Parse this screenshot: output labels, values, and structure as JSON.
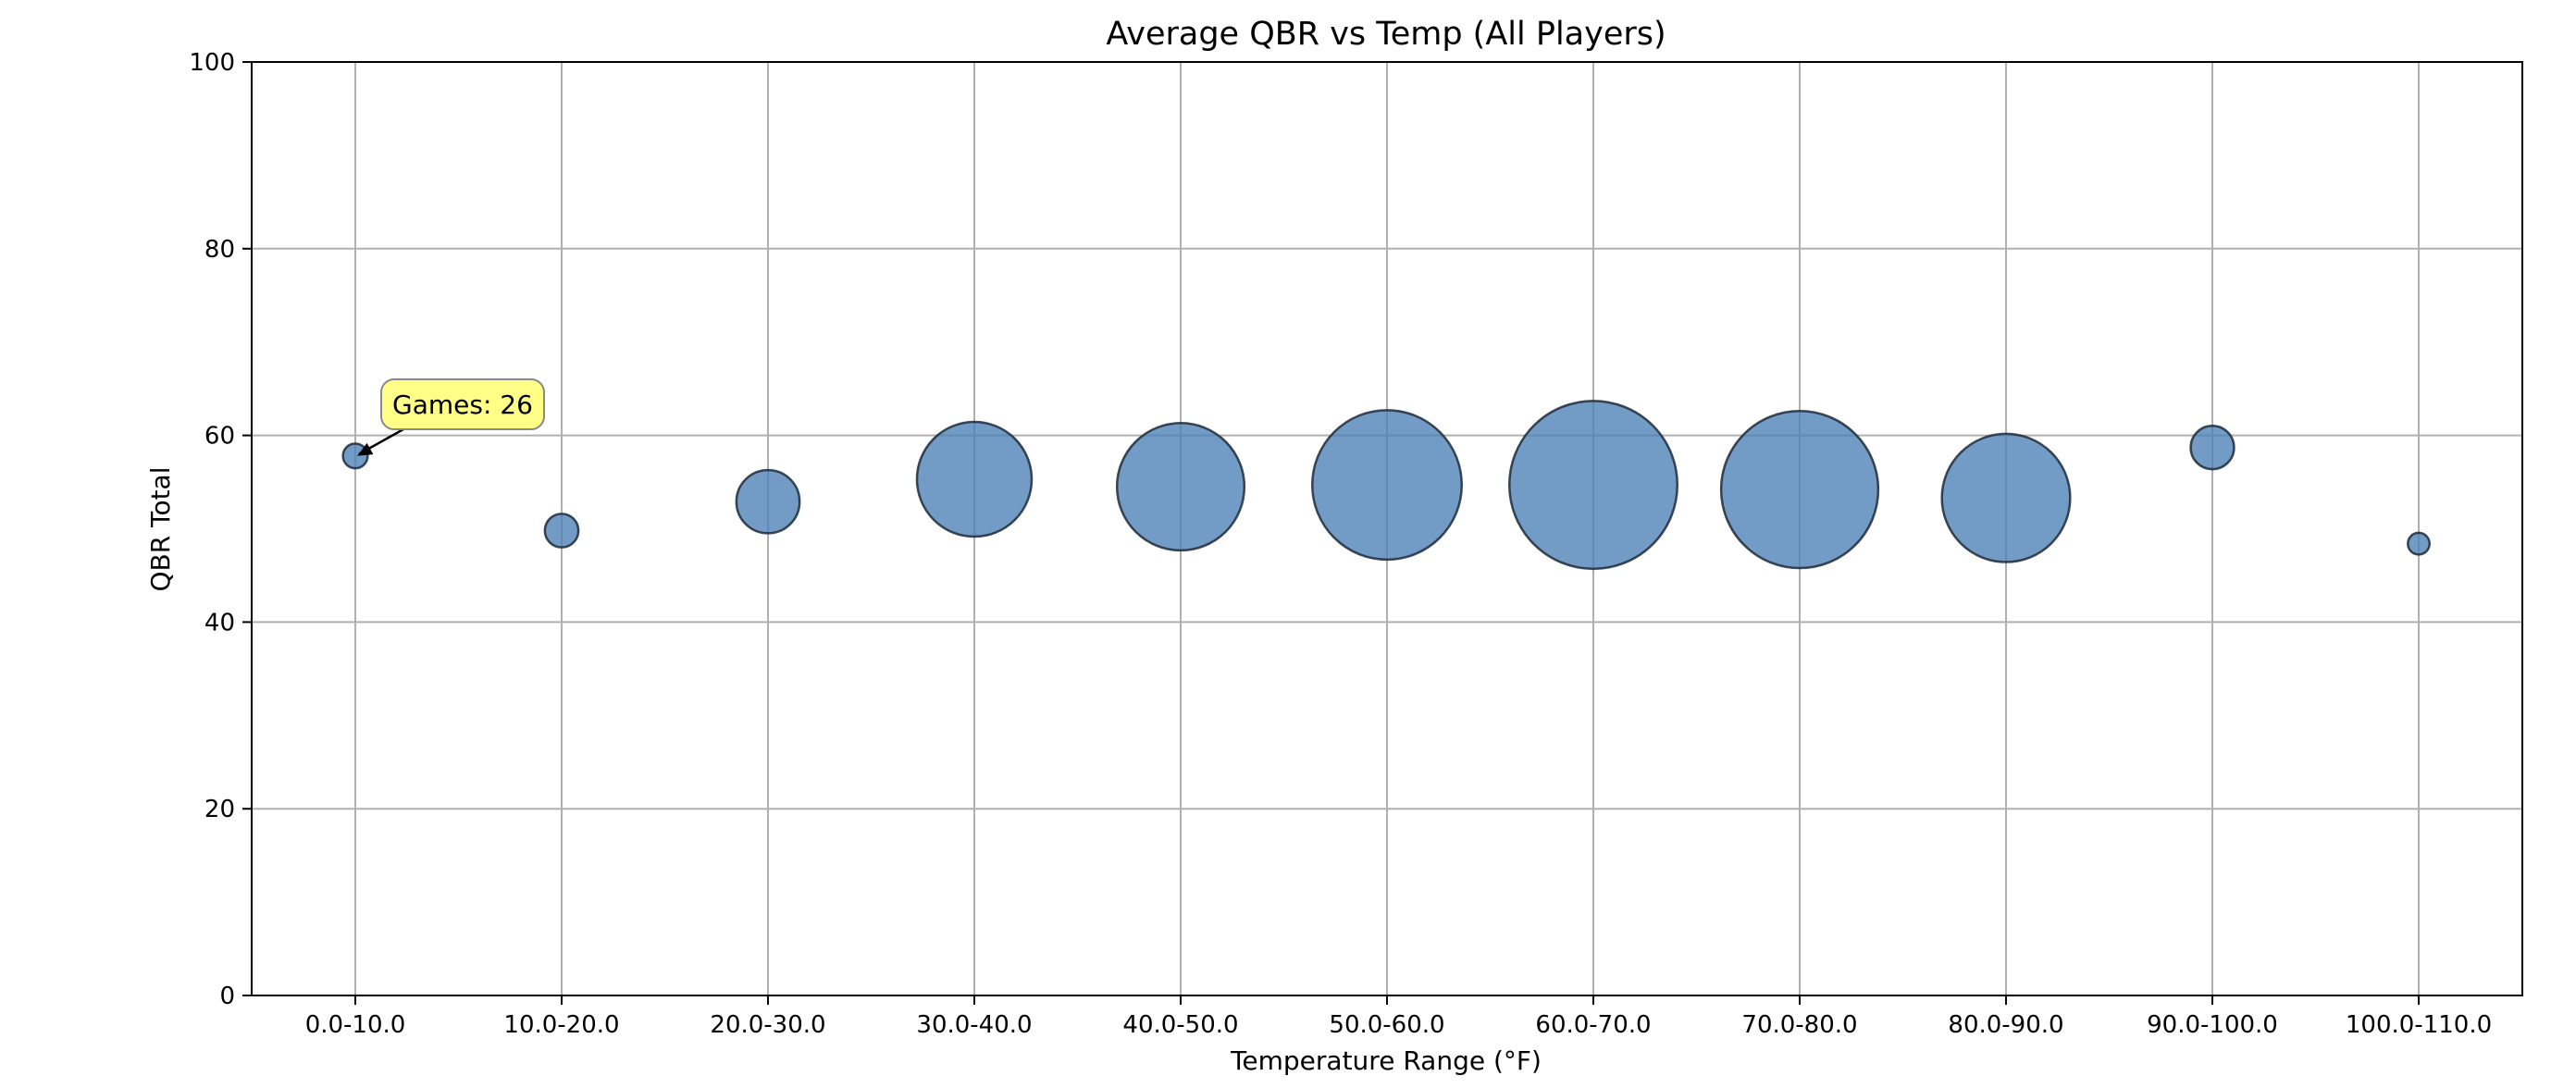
{
  "chart_data": {
    "type": "scatter",
    "title": "Average QBR vs Temp (All Players)",
    "xlabel": "Temperature Range (°F)",
    "ylabel": "QBR Total",
    "categories": [
      "0.0-10.0",
      "10.0-20.0",
      "20.0-30.0",
      "30.0-40.0",
      "40.0-50.0",
      "50.0-60.0",
      "60.0-70.0",
      "70.0-80.0",
      "80.0-90.0",
      "90.0-100.0",
      "100.0-110.0"
    ],
    "values": [
      57.8,
      49.8,
      52.9,
      55.3,
      54.5,
      54.7,
      54.7,
      54.2,
      53.3,
      58.7,
      48.4
    ],
    "games": [
      26,
      48,
      170,
      560,
      690,
      950,
      1200,
      1050,
      700,
      80,
      20
    ],
    "ylim": [
      0,
      100
    ],
    "yticks": [
      0,
      20,
      40,
      60,
      80,
      100
    ],
    "grid": true,
    "bubble_color": "#4a7fb5",
    "bubble_edge_color": "#1f2a38",
    "annotation": {
      "text": "Games: 26",
      "category": "0.0-10.0",
      "y": 57.8,
      "box_color": "#ffff88",
      "box_edge_color": "#888888"
    }
  }
}
